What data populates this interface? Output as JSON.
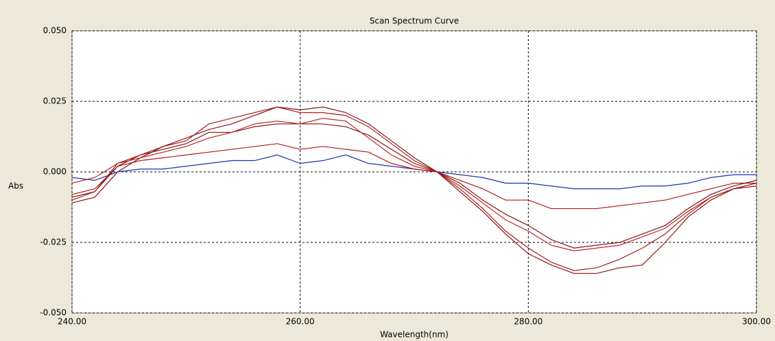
{
  "chart_data": {
    "type": "line",
    "title": "Scan Spectrum Curve",
    "x_label": "Wavelength(nm)",
    "y_label": "Abs",
    "x": [
      240,
      242,
      244,
      246,
      248,
      250,
      252,
      254,
      256,
      258,
      260,
      262,
      264,
      266,
      268,
      270,
      272,
      274,
      276,
      278,
      280,
      282,
      284,
      286,
      288,
      290,
      292,
      294,
      296,
      298,
      300
    ],
    "series": [
      {
        "color": "#1a2fb0",
        "values": [
          -0.002,
          -0.003,
          0.0,
          0.001,
          0.001,
          0.002,
          0.003,
          0.004,
          0.004,
          0.006,
          0.003,
          0.004,
          0.006,
          0.003,
          0.002,
          0.001,
          0.0,
          -0.001,
          -0.002,
          -0.004,
          -0.004,
          -0.005,
          -0.006,
          -0.006,
          -0.006,
          -0.005,
          -0.005,
          -0.004,
          -0.002,
          -0.001,
          -0.001
        ]
      },
      {
        "color": "#b01818",
        "values": [
          -0.008,
          -0.006,
          0.002,
          0.004,
          0.005,
          0.006,
          0.007,
          0.008,
          0.009,
          0.01,
          0.008,
          0.009,
          0.008,
          0.007,
          0.003,
          0.001,
          0.0,
          -0.003,
          -0.006,
          -0.01,
          -0.01,
          -0.013,
          -0.013,
          -0.013,
          -0.012,
          -0.011,
          -0.01,
          -0.008,
          -0.006,
          -0.004,
          -0.004
        ]
      },
      {
        "color": "#7a1414",
        "values": [
          -0.009,
          -0.007,
          0.002,
          0.006,
          0.008,
          0.01,
          0.014,
          0.014,
          0.016,
          0.017,
          0.017,
          0.017,
          0.016,
          0.013,
          0.008,
          0.003,
          0.0,
          -0.004,
          -0.01,
          -0.015,
          -0.019,
          -0.024,
          -0.027,
          -0.026,
          -0.025,
          -0.022,
          -0.019,
          -0.013,
          -0.008,
          -0.005,
          -0.003
        ]
      },
      {
        "color": "#c02020",
        "values": [
          -0.004,
          -0.002,
          0.003,
          0.005,
          0.007,
          0.009,
          0.012,
          0.014,
          0.017,
          0.018,
          0.017,
          0.019,
          0.018,
          0.012,
          0.006,
          0.002,
          0.0,
          -0.005,
          -0.011,
          -0.017,
          -0.021,
          -0.026,
          -0.028,
          -0.027,
          -0.026,
          -0.023,
          -0.02,
          -0.014,
          -0.009,
          -0.006,
          -0.004
        ]
      },
      {
        "color": "#a41c1c",
        "values": [
          -0.01,
          -0.007,
          0.003,
          0.006,
          0.009,
          0.011,
          0.017,
          0.019,
          0.021,
          0.023,
          0.021,
          0.021,
          0.02,
          0.016,
          0.01,
          0.004,
          0.0,
          -0.006,
          -0.013,
          -0.021,
          -0.027,
          -0.032,
          -0.035,
          -0.034,
          -0.031,
          -0.027,
          -0.022,
          -0.015,
          -0.009,
          -0.006,
          -0.004
        ]
      },
      {
        "color": "#8e1010",
        "values": [
          -0.011,
          -0.009,
          0.0,
          0.005,
          0.009,
          0.012,
          0.015,
          0.017,
          0.02,
          0.023,
          0.022,
          0.023,
          0.021,
          0.017,
          0.011,
          0.005,
          0.0,
          -0.007,
          -0.014,
          -0.022,
          -0.029,
          -0.033,
          -0.036,
          -0.036,
          -0.034,
          -0.033,
          -0.025,
          -0.016,
          -0.01,
          -0.006,
          -0.005
        ]
      }
    ],
    "xlim": [
      240,
      300
    ],
    "xticks": [
      {
        "value": 240,
        "label": "240.00"
      },
      {
        "value": 260,
        "label": "260.00"
      },
      {
        "value": 280,
        "label": "280.00"
      },
      {
        "value": 300,
        "label": "300.00"
      }
    ],
    "ylim": [
      -0.05,
      0.05
    ],
    "yticks": [
      {
        "value": -0.05,
        "label": "-0.050"
      },
      {
        "value": -0.025,
        "label": "-0.025"
      },
      {
        "value": 0,
        "label": "0.000"
      },
      {
        "value": 0.025,
        "label": "0.025"
      },
      {
        "value": 0.05,
        "label": "0.050"
      }
    ],
    "grid": true
  }
}
